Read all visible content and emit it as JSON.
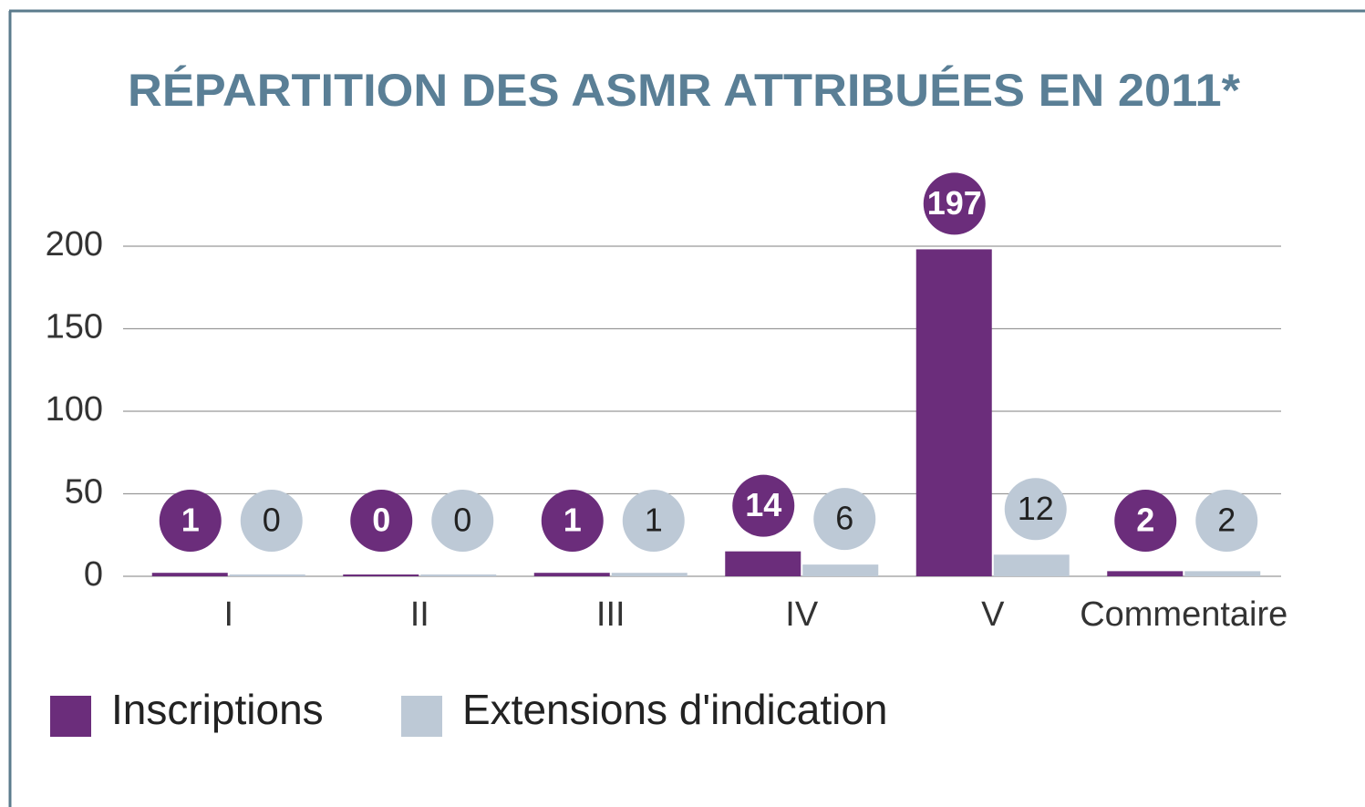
{
  "chart_data": {
    "type": "bar",
    "title": "RÉPARTITION DES ASMR ATTRIBUÉES EN 2011*",
    "categories": [
      "I",
      "II",
      "III",
      "IV",
      "V",
      "Commentaire"
    ],
    "series": [
      {
        "name": "Inscriptions",
        "color": "#6b2d7b",
        "values": [
          1,
          0,
          1,
          14,
          197,
          2
        ]
      },
      {
        "name": "Extensions d'indication",
        "color": "#bdc9d6",
        "values": [
          0,
          0,
          1,
          6,
          12,
          2
        ]
      }
    ],
    "ylim": [
      0,
      200
    ],
    "yticks": [
      0,
      50,
      100,
      150,
      200
    ],
    "grid": true,
    "legend": "bottom"
  }
}
